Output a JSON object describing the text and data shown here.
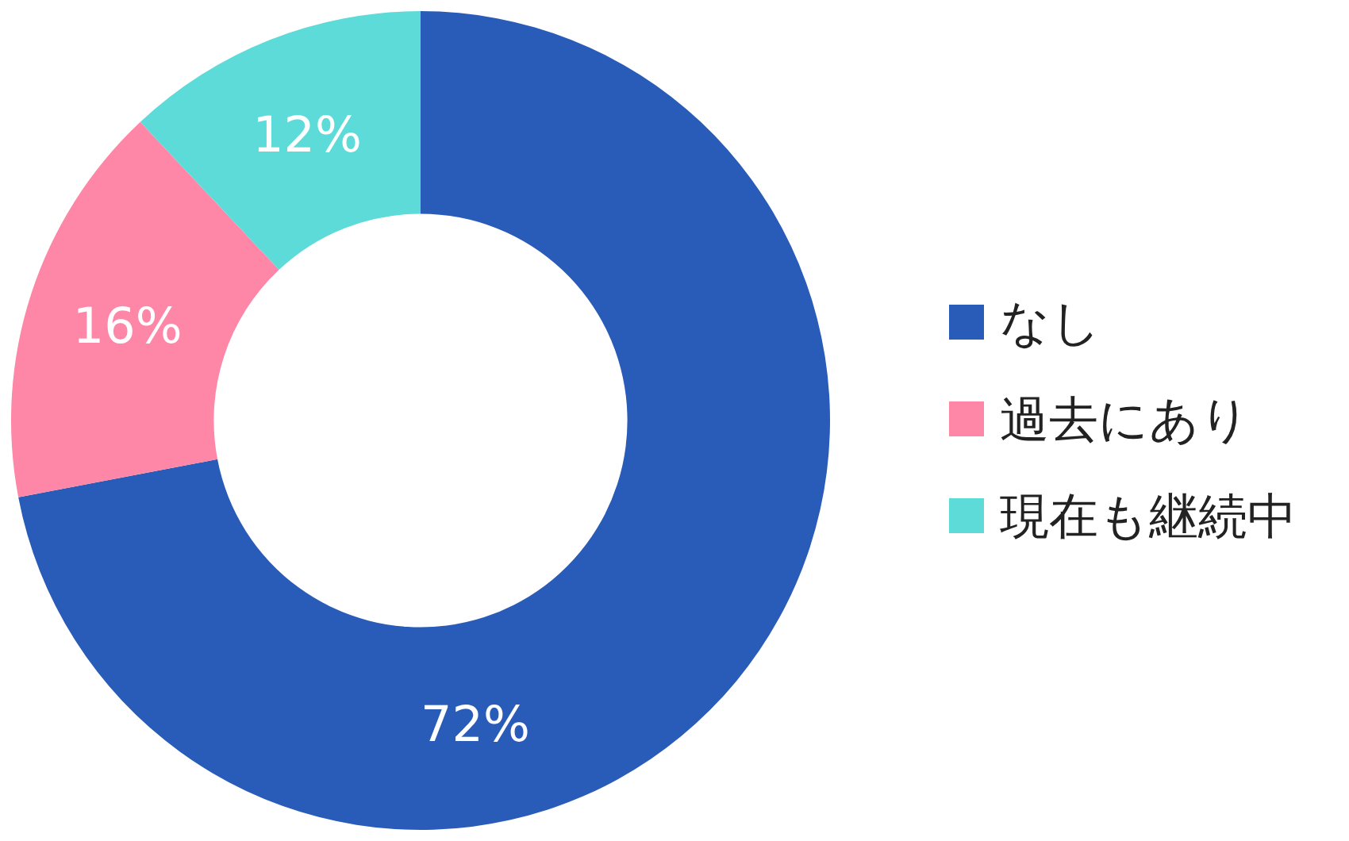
{
  "chart_data": {
    "type": "donut",
    "categories": [
      "なし",
      "過去にあり",
      "現在も継続中"
    ],
    "values": [
      72,
      16,
      12
    ],
    "colors": [
      "#295cb8",
      "#fe86a7",
      "#5ddbd9"
    ],
    "value_labels": [
      "72%",
      "16%",
      "12%"
    ],
    "legend": "right"
  }
}
